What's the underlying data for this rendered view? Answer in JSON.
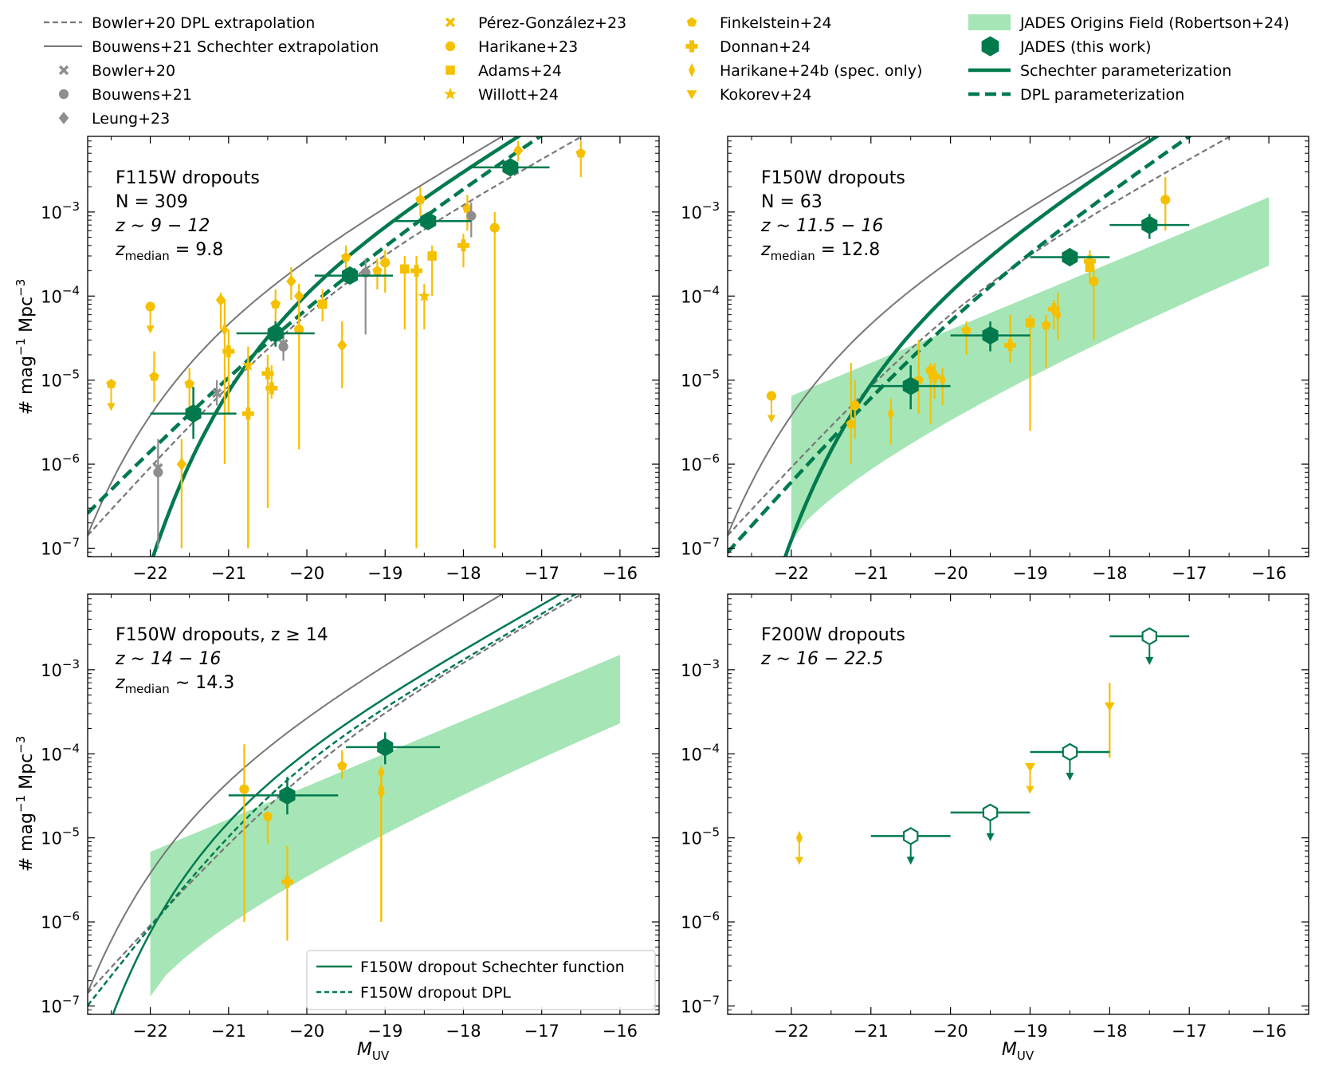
{
  "figure": {
    "xlabel_main": "M",
    "xlabel_sub": "UV",
    "ylabel_parts": [
      "#  mag",
      "−1",
      "  Mpc",
      "−3"
    ],
    "x_tick_labels": [
      "−22",
      "−21",
      "−20",
      "−19",
      "−18",
      "−17",
      "−16"
    ],
    "y_tick_base": "10",
    "y_tick_exps": [
      "−7",
      "−6",
      "−5",
      "−4",
      "−3"
    ],
    "colors": {
      "green": "#007a4d",
      "gold": "#f5c000",
      "gray": "#777777",
      "lightgray": "#8e8e8e",
      "band": "#a6e6b6"
    }
  },
  "legend": {
    "col1": [
      {
        "label": "Bowler+20 DPL extrapolation",
        "marker": "dashed-line-icon"
      },
      {
        "label": "Bouwens+21 Schechter extrapolation",
        "marker": "solid-line-icon"
      },
      {
        "label": "Bowler+20",
        "marker": "x-icon"
      },
      {
        "label": "Bouwens+21",
        "marker": "circle-icon"
      },
      {
        "label": "Leung+23",
        "marker": "diamond-icon"
      }
    ],
    "col2": [
      {
        "label": "Pérez-González+23",
        "marker": "x-icon"
      },
      {
        "label": "Harikane+23",
        "marker": "circle-icon"
      },
      {
        "label": "Adams+24",
        "marker": "square-icon"
      },
      {
        "label": "Willott+24",
        "marker": "star-icon"
      }
    ],
    "col3": [
      {
        "label": "Finkelstein+24",
        "marker": "pentagon-icon"
      },
      {
        "label": "Donnan+24",
        "marker": "plus-icon"
      },
      {
        "label": "Harikane+24b (spec. only)",
        "marker": "thin-diamond-icon"
      },
      {
        "label": "Kokorev+24",
        "marker": "triangle-down-icon"
      }
    ],
    "col4": [
      {
        "label": "JADES Origins Field (Robertson+24)",
        "marker": "band-icon"
      },
      {
        "label": "JADES (this work)",
        "marker": "hexagon-icon"
      },
      {
        "label": "Schechter parameterization",
        "marker": "thick-line-icon"
      },
      {
        "label": "DPL parameterization",
        "marker": "thick-dashed-icon"
      }
    ]
  },
  "panels": {
    "p1": {
      "title": "F115W dropouts",
      "n": "N = 309",
      "z": "z ∼ 9 − 12",
      "zmed_prefix": "z",
      "zmed_sub": "median",
      "zmed_value": " = 9.8"
    },
    "p2": {
      "title": "F150W dropouts",
      "n": "N = 63",
      "z": "z ∼ 11.5 − 16",
      "zmed_prefix": "z",
      "zmed_sub": "median",
      "zmed_value": " = 12.8"
    },
    "p3": {
      "title": "F150W dropouts, z ≥ 14",
      "z": "z ∼ 14 − 16",
      "zmed_prefix": "z",
      "zmed_sub": "median",
      "zmed_value": " ∼ 14.3",
      "legend": [
        "F150W dropout Schechter function",
        "F150W dropout DPL"
      ]
    },
    "p4": {
      "title": "F200W dropouts",
      "z": "z ∼ 16 − 22.5"
    }
  },
  "chart_data": [
    {
      "type": "scatter",
      "panel": "F115W dropouts",
      "xlim": [
        -22.8,
        -15.5
      ],
      "ylim_log10": [
        -7.1,
        -2.1
      ],
      "jades": [
        {
          "x": -21.45,
          "y": 4e-06,
          "ylo": 2e-06,
          "yhi": 8.3e-06,
          "xlo": -22,
          "xhi": -20.9
        },
        {
          "x": -20.4,
          "y": 3.6e-05,
          "ylo": 2.5e-05,
          "yhi": 5e-05,
          "xlo": -20.9,
          "xhi": -19.9
        },
        {
          "x": -19.45,
          "y": 0.000175,
          "ylo": 0.00014,
          "yhi": 0.00022,
          "xlo": -19.9,
          "xhi": -18.9
        },
        {
          "x": -18.45,
          "y": 0.00078,
          "ylo": 0.00065,
          "yhi": 0.00095,
          "xlo": -18.9,
          "xhi": -17.9
        },
        {
          "x": -17.4,
          "y": 0.0034,
          "ylo": 0.0028,
          "yhi": 0.0042,
          "xlo": -17.9,
          "xhi": -16.9
        }
      ],
      "literature": [
        {
          "x": -22.5,
          "y": 9e-06,
          "marker": "pentagon",
          "c": "gold",
          "upper": true
        },
        {
          "x": -22.0,
          "y": 7.5e-05,
          "marker": "circle",
          "c": "gold",
          "upper": true
        },
        {
          "x": -21.95,
          "y": 1.1e-05,
          "ylo": 5.5e-06,
          "yhi": 2.2e-05,
          "marker": "pentagon",
          "c": "gold"
        },
        {
          "x": -21.6,
          "y": 1e-06,
          "ylo": 1e-07,
          "yhi": 2e-06,
          "marker": "diamond",
          "c": "gold"
        },
        {
          "x": -21.5,
          "y": 9e-06,
          "ylo": 4e-06,
          "yhi": 1.4e-05,
          "marker": "pentagon",
          "c": "gold"
        },
        {
          "x": -21.1,
          "y": 9e-05,
          "ylo": 4e-05,
          "yhi": 0.00011,
          "marker": "diamond",
          "c": "gold"
        },
        {
          "x": -21.05,
          "y": 4e-05,
          "ylo": 1e-06,
          "yhi": 9e-05,
          "marker": "thindiamond",
          "c": "gold"
        },
        {
          "x": -21.0,
          "y": 2.2e-05,
          "ylo": 4e-06,
          "yhi": 4e-05,
          "marker": "plus",
          "c": "gold"
        },
        {
          "x": -20.75,
          "y": 1.5e-05,
          "ylo": 1e-07,
          "yhi": 2.5e-05,
          "marker": "star",
          "c": "gold"
        },
        {
          "x": -20.75,
          "y": 4e-06,
          "ylo": 1e-07,
          "yhi": 1.5e-05,
          "marker": "plus",
          "c": "gold"
        },
        {
          "x": -20.5,
          "y": 1.2e-05,
          "ylo": 3e-07,
          "yhi": 2e-05,
          "marker": "plus",
          "c": "gold"
        },
        {
          "x": -20.4,
          "y": 8e-05,
          "ylo": 5e-05,
          "yhi": 0.00012,
          "marker": "pentagon",
          "c": "gold"
        },
        {
          "x": -20.45,
          "y": 8e-06,
          "ylo": 6e-06,
          "yhi": 1.5e-05,
          "marker": "plus",
          "c": "gold"
        },
        {
          "x": -20.2,
          "y": 0.00015,
          "ylo": 9e-05,
          "yhi": 0.00022,
          "marker": "diamond",
          "c": "gold"
        },
        {
          "x": -20.1,
          "y": 0.0001,
          "ylo": 4e-05,
          "yhi": 0.00014,
          "marker": "diamond",
          "c": "gold"
        },
        {
          "x": -20.1,
          "y": 4e-05,
          "ylo": 1.5e-06,
          "yhi": 6e-05,
          "marker": "circle",
          "c": "gold"
        },
        {
          "x": -19.8,
          "y": 8e-05,
          "ylo": 5e-05,
          "yhi": 0.00012,
          "marker": "square",
          "c": "gold"
        },
        {
          "x": -19.55,
          "y": 2.6e-05,
          "ylo": 8e-06,
          "yhi": 5e-05,
          "marker": "diamond",
          "c": "gold"
        },
        {
          "x": -19.5,
          "y": 0.00029,
          "ylo": 0.0002,
          "yhi": 0.0004,
          "marker": "pentagon",
          "c": "gold"
        },
        {
          "x": -19.1,
          "y": 0.0002,
          "ylo": 0.00012,
          "yhi": 0.00028,
          "marker": "pentagon",
          "c": "gold"
        },
        {
          "x": -19.0,
          "y": 0.00025,
          "ylo": 0.00011,
          "yhi": 0.00035,
          "marker": "circle",
          "c": "gold"
        },
        {
          "x": -18.75,
          "y": 0.00021,
          "ylo": 4e-05,
          "yhi": 0.0003,
          "marker": "square",
          "c": "gold"
        },
        {
          "x": -18.6,
          "y": 0.0002,
          "ylo": 1e-07,
          "yhi": 0.0003,
          "marker": "plus",
          "c": "gold"
        },
        {
          "x": -18.55,
          "y": 0.0014,
          "ylo": 0.0009,
          "yhi": 0.002,
          "marker": "pentagon",
          "c": "gold"
        },
        {
          "x": -18.5,
          "y": 0.0001,
          "ylo": 4e-05,
          "yhi": 0.00014,
          "marker": "star",
          "c": "gold"
        },
        {
          "x": -18.4,
          "y": 0.0003,
          "ylo": 0.0001,
          "yhi": 0.0004,
          "marker": "square",
          "c": "gold"
        },
        {
          "x": -18.0,
          "y": 0.0004,
          "ylo": 0.00022,
          "yhi": 0.00055,
          "marker": "plus",
          "c": "gold"
        },
        {
          "x": -17.95,
          "y": 0.0011,
          "ylo": 0.0006,
          "yhi": 0.0016,
          "marker": "pentagon",
          "c": "gold"
        },
        {
          "x": -17.6,
          "y": 0.00065,
          "ylo": 1e-07,
          "yhi": 0.001,
          "marker": "circle",
          "c": "gold"
        },
        {
          "x": -17.3,
          "y": 0.0054,
          "ylo": 0.004,
          "yhi": 0.007,
          "marker": "diamond",
          "c": "gold"
        },
        {
          "x": -16.5,
          "y": 0.005,
          "ylo": 0.0026,
          "yhi": 0.007,
          "marker": "pentagon",
          "c": "gold"
        },
        {
          "x": -21.9,
          "y": 9e-07,
          "ylo": 2e-07,
          "yhi": 2e-06,
          "marker": "x",
          "c": "lightgray"
        },
        {
          "x": -21.15,
          "y": 7e-06,
          "ylo": 5e-06,
          "yhi": 1e-05,
          "marker": "x",
          "c": "lightgray"
        },
        {
          "x": -20.3,
          "y": 2.7e-05,
          "ylo": 2e-05,
          "yhi": 3.5e-05,
          "marker": "x",
          "c": "lightgray"
        },
        {
          "x": -21.9,
          "y": 8e-07,
          "ylo": 1e-07,
          "yhi": 1.6e-06,
          "marker": "circle",
          "c": "lightgray"
        },
        {
          "x": -20.3,
          "y": 2.5e-05,
          "ylo": 1.7e-05,
          "yhi": 3.4e-05,
          "marker": "circle",
          "c": "lightgray"
        },
        {
          "x": -19.25,
          "y": 0.00019,
          "ylo": 3.5e-05,
          "yhi": 0.00028,
          "marker": "circle",
          "c": "lightgray"
        },
        {
          "x": -17.9,
          "y": 0.0009,
          "ylo": 0.0005,
          "yhi": 0.0013,
          "marker": "circle",
          "c": "lightgray"
        }
      ],
      "curves": {
        "schechter": {
          "phi": 0.00025,
          "mstar": -20.1,
          "alpha": -2.4
        },
        "dpl": {
          "phi": 0.00014,
          "mstar": -20.0,
          "alpha": -2.5,
          "beta": -3.4
        },
        "bowler_dpl": {
          "phi": 0.00012,
          "mstar": -20.0,
          "alpha": -2.3,
          "beta": -3.6
        },
        "bouwens_schechter": {
          "phi": 9e-05,
          "mstar": -21.2,
          "alpha": -2.35
        }
      }
    },
    {
      "type": "scatter",
      "panel": "F150W dropouts",
      "xlim": [
        -22.8,
        -15.5
      ],
      "ylim_log10": [
        -7.1,
        -2.1
      ],
      "jades": [
        {
          "x": -20.5,
          "y": 8.5e-06,
          "ylo": 4.5e-06,
          "yhi": 1.5e-05,
          "xlo": -21.0,
          "xhi": -20.0
        },
        {
          "x": -19.5,
          "y": 3.4e-05,
          "ylo": 2.2e-05,
          "yhi": 5e-05,
          "xlo": -20.0,
          "xhi": -19.0
        },
        {
          "x": -18.5,
          "y": 0.00029,
          "ylo": 0.00023,
          "yhi": 0.00037,
          "xlo": -19.0,
          "xhi": -18.0
        },
        {
          "x": -17.5,
          "y": 0.0007,
          "ylo": 0.00048,
          "yhi": 0.00095,
          "xlo": -18.0,
          "xhi": -17.0
        }
      ],
      "literature": [
        {
          "x": -22.25,
          "y": 6.5e-06,
          "marker": "circle",
          "c": "gold",
          "upper": true
        },
        {
          "x": -21.25,
          "y": 3e-06,
          "ylo": 1e-06,
          "yhi": 1.6e-05,
          "marker": "pentagon",
          "c": "gold"
        },
        {
          "x": -21.2,
          "y": 5e-06,
          "ylo": 2e-06,
          "yhi": 1e-05,
          "marker": "circle",
          "c": "gold"
        },
        {
          "x": -20.75,
          "y": 4e-06,
          "ylo": 1.7e-06,
          "yhi": 6e-06,
          "marker": "thindiamond",
          "c": "gold"
        },
        {
          "x": -20.4,
          "y": 1e-05,
          "ylo": 4e-06,
          "yhi": 3e-05,
          "marker": "pentagon",
          "c": "gold"
        },
        {
          "x": -20.25,
          "y": 1.3e-05,
          "ylo": 3e-06,
          "yhi": 1.6e-05,
          "marker": "circle",
          "c": "gold"
        },
        {
          "x": -20.2,
          "y": 1.1e-05,
          "ylo": 6e-06,
          "yhi": 1.6e-05,
          "marker": "plus",
          "c": "gold"
        },
        {
          "x": -20.1,
          "y": 1e-05,
          "ylo": 5e-06,
          "yhi": 1.4e-05,
          "marker": "thindiamond",
          "c": "gold"
        },
        {
          "x": -19.8,
          "y": 3.9e-05,
          "ylo": 2e-05,
          "yhi": 5e-05,
          "marker": "pentagon",
          "c": "gold"
        },
        {
          "x": -19.25,
          "y": 2.6e-05,
          "ylo": 1.6e-05,
          "yhi": 6e-05,
          "marker": "plus",
          "c": "gold"
        },
        {
          "x": -19.0,
          "y": 4.8e-05,
          "ylo": 2.5e-06,
          "yhi": 6e-05,
          "marker": "square",
          "c": "gold"
        },
        {
          "x": -18.8,
          "y": 4.5e-05,
          "ylo": 1.4e-05,
          "yhi": 6e-05,
          "marker": "pentagon",
          "c": "gold"
        },
        {
          "x": -18.7,
          "y": 7e-05,
          "ylo": 4e-05,
          "yhi": 9e-05,
          "marker": "plus",
          "c": "gold"
        },
        {
          "x": -18.65,
          "y": 6e-05,
          "ylo": 3e-05,
          "yhi": 0.00011,
          "marker": "thindiamond",
          "c": "gold"
        },
        {
          "x": -18.25,
          "y": 0.00022,
          "ylo": 0.00014,
          "yhi": 0.00032,
          "marker": "square",
          "c": "gold"
        },
        {
          "x": -18.2,
          "y": 0.00015,
          "ylo": 3e-05,
          "yhi": 0.00022,
          "marker": "circle",
          "c": "gold"
        },
        {
          "x": -18.25,
          "y": 0.00026,
          "ylo": 0.00018,
          "yhi": 0.00035,
          "marker": "plus",
          "c": "gold"
        },
        {
          "x": -17.3,
          "y": 0.0014,
          "ylo": 0.0006,
          "yhi": 0.0026,
          "marker": "circle",
          "c": "gold"
        }
      ],
      "band": {
        "x": [
          -22,
          -16
        ],
        "lower": [
          1.2e-07,
          0.00023
        ],
        "upper": [
          6.5e-06,
          0.0015
        ]
      },
      "curves": {
        "schechter": {
          "phi": 0.00017,
          "mstar": -20.3,
          "alpha": -2.5
        },
        "dpl": {
          "phi": 0.0001,
          "mstar": -20.0,
          "alpha": -2.6,
          "beta": -3.7
        },
        "bowler_dpl": {
          "phi": 0.00012,
          "mstar": -20.0,
          "alpha": -2.3,
          "beta": -3.6
        },
        "bouwens_schechter": {
          "phi": 9e-05,
          "mstar": -21.2,
          "alpha": -2.35
        }
      }
    },
    {
      "type": "scatter",
      "panel": "F150W dropouts, z ≥ 14",
      "xlim": [
        -22.8,
        -15.5
      ],
      "ylim_log10": [
        -7.1,
        -2.1
      ],
      "jades": [
        {
          "x": -20.25,
          "y": 3.2e-05,
          "ylo": 1.9e-05,
          "yhi": 5.3e-05,
          "xlo": -21.0,
          "xhi": -19.6
        },
        {
          "x": -19.0,
          "y": 0.00012,
          "ylo": 7.5e-05,
          "yhi": 0.00018,
          "xlo": -19.5,
          "xhi": -18.3
        }
      ],
      "literature": [
        {
          "x": -20.8,
          "y": 3.8e-05,
          "ylo": 1e-06,
          "yhi": 0.00013,
          "marker": "circle",
          "c": "gold"
        },
        {
          "x": -20.5,
          "y": 1.8e-05,
          "ylo": 8.5e-06,
          "yhi": 1.9e-05,
          "marker": "pentagon",
          "c": "gold"
        },
        {
          "x": -20.25,
          "y": 3e-06,
          "ylo": 6e-07,
          "yhi": 8e-06,
          "marker": "plus",
          "c": "gold"
        },
        {
          "x": -19.55,
          "y": 7.2e-05,
          "ylo": 5e-05,
          "yhi": 0.00011,
          "marker": "pentagon",
          "c": "gold"
        },
        {
          "x": -19.05,
          "y": 3.8e-05,
          "ylo": 1e-06,
          "yhi": 5e-05,
          "marker": "thindiamond",
          "c": "gold"
        },
        {
          "x": -19.05,
          "y": 6e-05,
          "ylo": 1e-06,
          "yhi": 6e-05,
          "marker": "thindiamond",
          "c": "gold",
          "upper": true
        }
      ],
      "band": {
        "x": [
          -22,
          -16
        ],
        "lower": [
          1.3e-07,
          0.00023
        ],
        "upper": [
          6.8e-06,
          0.0015
        ]
      },
      "curves": {
        "schechter": {
          "phi": 7e-05,
          "mstar": -20.8,
          "alpha": -2.3
        },
        "dpl": {
          "phi": 6e-05,
          "mstar": -20.5,
          "alpha": -2.35,
          "beta": -4.0
        },
        "bowler_dpl": {
          "phi": 0.00012,
          "mstar": -20.0,
          "alpha": -2.3,
          "beta": -3.6
        },
        "bouwens_schechter": {
          "phi": 9e-05,
          "mstar": -21.2,
          "alpha": -2.35
        }
      }
    },
    {
      "type": "scatter",
      "panel": "F200W dropouts",
      "xlim": [
        -22.8,
        -15.5
      ],
      "ylim_log10": [
        -7.1,
        -2.1
      ],
      "jades_upper": [
        {
          "x": -20.5,
          "y": 1.05e-05,
          "xlo": -21.0,
          "xhi": -20.0
        },
        {
          "x": -19.5,
          "y": 2e-05,
          "xlo": -20.0,
          "xhi": -19.0
        },
        {
          "x": -18.5,
          "y": 0.000105,
          "xlo": -19.0,
          "xhi": -18.0
        },
        {
          "x": -17.5,
          "y": 0.0025,
          "xlo": -18.0,
          "xhi": -17.0
        }
      ],
      "literature": [
        {
          "x": -21.9,
          "y": 1e-05,
          "marker": "thindiamond",
          "c": "gold",
          "upper": true
        },
        {
          "x": -19.0,
          "y": 7e-05,
          "marker": "triangle-down",
          "c": "gold",
          "upper": true
        },
        {
          "x": -18.0,
          "y": 0.00037,
          "ylo": 9e-05,
          "yhi": 0.0007,
          "marker": "triangle-down",
          "c": "gold"
        }
      ]
    }
  ]
}
